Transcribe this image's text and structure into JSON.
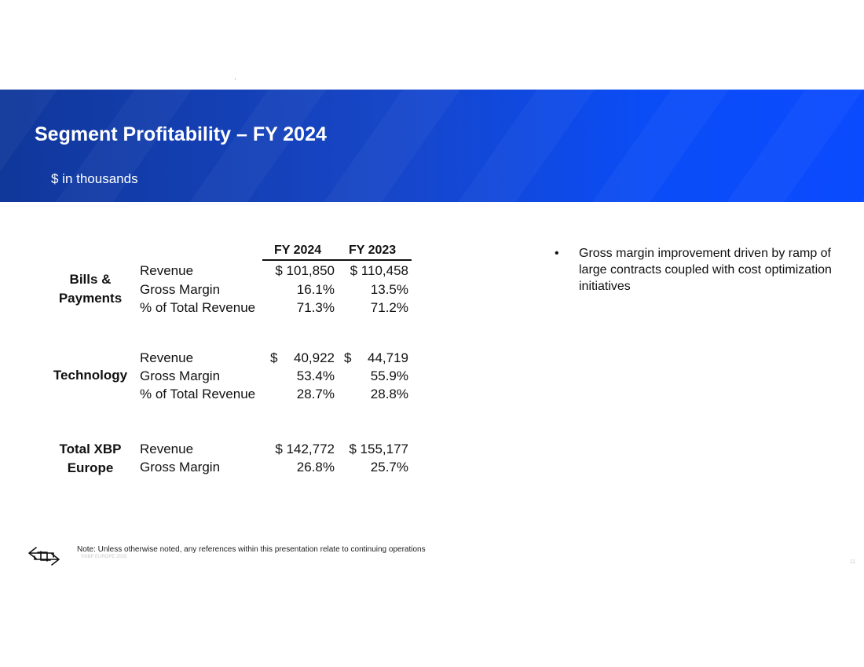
{
  "header": {
    "title": "Segment Profitability – FY 2024",
    "subtitle": "$ in thousands"
  },
  "table": {
    "columns": [
      "FY 2024",
      "FY 2023"
    ],
    "segments": [
      {
        "name_line1": "Bills &",
        "name_line2": "Payments",
        "rows": [
          {
            "label": "Revenue",
            "fy2024": "$ 101,850",
            "fy2023": "$ 110,458"
          },
          {
            "label": "Gross Margin",
            "fy2024": "16.1%",
            "fy2023": "13.5%"
          },
          {
            "label": "% of Total Revenue",
            "fy2024": "71.3%",
            "fy2023": "71.2%"
          }
        ]
      },
      {
        "name": "Technology",
        "rows": [
          {
            "label": "Revenue",
            "fy2024_symbol": "$",
            "fy2024": "40,922",
            "fy2023_symbol": "$",
            "fy2023": "44,719"
          },
          {
            "label": "Gross Margin",
            "fy2024": "53.4%",
            "fy2023": "55.9%"
          },
          {
            "label": "% of Total Revenue",
            "fy2024": "28.7%",
            "fy2023": "28.8%"
          }
        ]
      },
      {
        "name_line1": "Total XBP",
        "name_line2": "Europe",
        "rows": [
          {
            "label": "Revenue",
            "fy2024": "$ 142,772",
            "fy2023": "$ 155,177"
          },
          {
            "label": "Gross Margin",
            "fy2024": "26.8%",
            "fy2023": "25.7%"
          }
        ]
      }
    ]
  },
  "bullets": [
    {
      "marker": "•",
      "text": "Gross margin improvement driven by ramp of large contracts coupled with cost optimization initiatives"
    }
  ],
  "footer": {
    "logo_icon": "xbp-arrows-logo-icon",
    "note": "Note: Unless otherwise noted, any references within this presentation relate to continuing operations",
    "copyright": "©XBP EUROPE 2025",
    "page_number": "11"
  },
  "colors": {
    "banner_left": "#10379a",
    "banner_right": "#0b4bff",
    "text": "#111111"
  }
}
